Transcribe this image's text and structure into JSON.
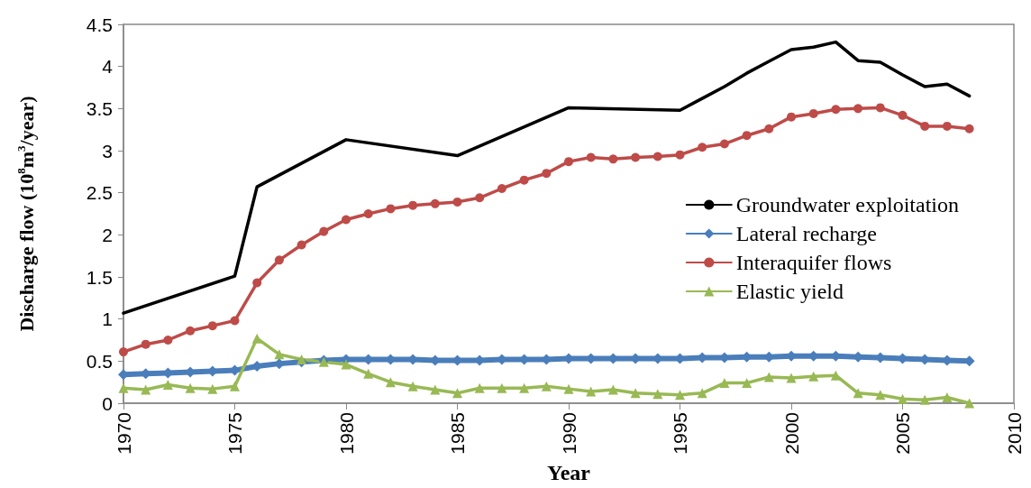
{
  "chart_data": {
    "type": "line",
    "xlabel": "Year",
    "ylabel": "Discharge flow (10$^{8}$m$^{3}$/year)",
    "xlim": [
      1970,
      2010
    ],
    "xticks": [
      1970,
      1975,
      1980,
      1985,
      1990,
      1995,
      2000,
      2005,
      2010
    ],
    "ylim": [
      0,
      4.5
    ],
    "yticks": [
      0,
      0.5,
      1,
      1.5,
      2,
      2.5,
      3,
      3.5,
      4,
      4.5
    ],
    "grid": false,
    "legend": "right",
    "x": [
      1970,
      1971,
      1972,
      1973,
      1974,
      1975,
      1976,
      1977,
      1978,
      1979,
      1980,
      1981,
      1982,
      1983,
      1984,
      1985,
      1986,
      1987,
      1988,
      1989,
      1990,
      1991,
      1992,
      1993,
      1994,
      1995,
      1996,
      1997,
      1998,
      1999,
      2000,
      2001,
      2002,
      2003,
      2004,
      2005,
      2006,
      2007,
      2008
    ],
    "series": [
      {
        "name": "Groundwater exploitation",
        "color": "#000000",
        "marker": "none",
        "x": [
          1970,
          1975,
          1976,
          1980,
          1985,
          1990,
          1995,
          1996,
          1997,
          1998,
          1999,
          2000,
          2001,
          2002,
          2003,
          2004,
          2005,
          2006,
          2007,
          2008
        ],
        "values": [
          1.07,
          1.51,
          2.57,
          3.13,
          2.94,
          3.51,
          3.48,
          3.62,
          3.76,
          3.92,
          4.06,
          4.2,
          4.23,
          4.29,
          4.07,
          4.05,
          3.9,
          3.76,
          3.79,
          3.65
        ]
      },
      {
        "name": "Lateral recharge",
        "color": "#4a7ebb",
        "marker": "diamond",
        "values": [
          0.34,
          0.35,
          0.36,
          0.37,
          0.38,
          0.39,
          0.44,
          0.47,
          0.49,
          0.51,
          0.52,
          0.52,
          0.52,
          0.52,
          0.51,
          0.51,
          0.51,
          0.52,
          0.52,
          0.52,
          0.53,
          0.53,
          0.53,
          0.53,
          0.53,
          0.53,
          0.54,
          0.54,
          0.55,
          0.55,
          0.56,
          0.56,
          0.56,
          0.55,
          0.54,
          0.53,
          0.52,
          0.51,
          0.5
        ]
      },
      {
        "name": "Interaquifer flows",
        "color": "#be4b48",
        "marker": "circle",
        "values": [
          0.61,
          0.7,
          0.75,
          0.86,
          0.92,
          0.98,
          1.43,
          1.7,
          1.88,
          2.04,
          2.18,
          2.25,
          2.31,
          2.35,
          2.37,
          2.39,
          2.44,
          2.55,
          2.65,
          2.73,
          2.87,
          2.92,
          2.9,
          2.92,
          2.93,
          2.95,
          3.04,
          3.08,
          3.18,
          3.26,
          3.4,
          3.44,
          3.49,
          3.5,
          3.51,
          3.42,
          3.29,
          3.29,
          3.26
        ]
      },
      {
        "name": "Elastic yield",
        "color": "#98b954",
        "marker": "triangle",
        "values": [
          0.18,
          0.16,
          0.22,
          0.18,
          0.17,
          0.2,
          0.77,
          0.58,
          0.52,
          0.49,
          0.46,
          0.35,
          0.25,
          0.2,
          0.16,
          0.12,
          0.18,
          0.18,
          0.18,
          0.2,
          0.17,
          0.14,
          0.16,
          0.12,
          0.11,
          0.1,
          0.12,
          0.24,
          0.24,
          0.31,
          0.3,
          0.32,
          0.33,
          0.12,
          0.1,
          0.05,
          0.04,
          0.07,
          0
        ]
      }
    ]
  }
}
